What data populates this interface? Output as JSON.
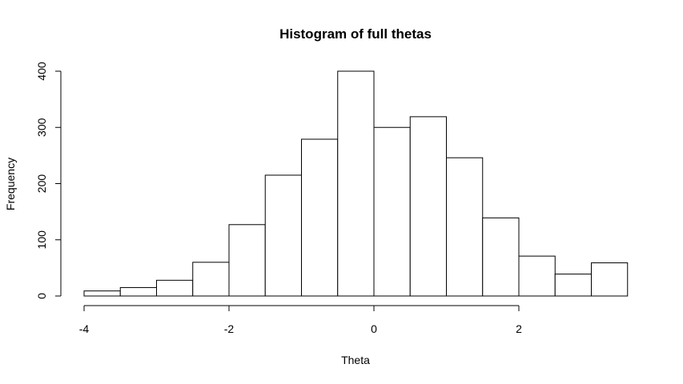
{
  "chart_data": {
    "type": "bar",
    "title": "Histogram of full thetas",
    "xlabel": "Theta",
    "ylabel": "Frequency",
    "xlim": [
      -4,
      3.5
    ],
    "ylim": [
      0,
      400
    ],
    "x_ticks": [
      -4,
      -2,
      0,
      2
    ],
    "x_tick_labels": [
      "-4",
      "-2",
      "0",
      "2"
    ],
    "y_ticks": [
      0,
      100,
      200,
      300,
      400
    ],
    "y_tick_labels": [
      "0",
      "100",
      "200",
      "300",
      "400"
    ],
    "bin_width": 0.5,
    "bins": [
      {
        "start": -4.0,
        "end": -3.5,
        "count": 9
      },
      {
        "start": -3.5,
        "end": -3.0,
        "count": 15
      },
      {
        "start": -3.0,
        "end": -2.5,
        "count": 28
      },
      {
        "start": -2.5,
        "end": -2.0,
        "count": 60
      },
      {
        "start": -2.0,
        "end": -1.5,
        "count": 127
      },
      {
        "start": -1.5,
        "end": -1.0,
        "count": 215
      },
      {
        "start": -1.0,
        "end": -0.5,
        "count": 279
      },
      {
        "start": -0.5,
        "end": 0.0,
        "count": 400
      },
      {
        "start": 0.0,
        "end": 0.5,
        "count": 300
      },
      {
        "start": 0.5,
        "end": 1.0,
        "count": 319
      },
      {
        "start": 1.0,
        "end": 1.5,
        "count": 246
      },
      {
        "start": 1.5,
        "end": 2.0,
        "count": 139
      },
      {
        "start": 2.0,
        "end": 2.5,
        "count": 71
      },
      {
        "start": 2.5,
        "end": 3.0,
        "count": 39
      },
      {
        "start": 3.0,
        "end": 3.5,
        "count": 59
      }
    ],
    "grid": false,
    "legend": "none"
  }
}
